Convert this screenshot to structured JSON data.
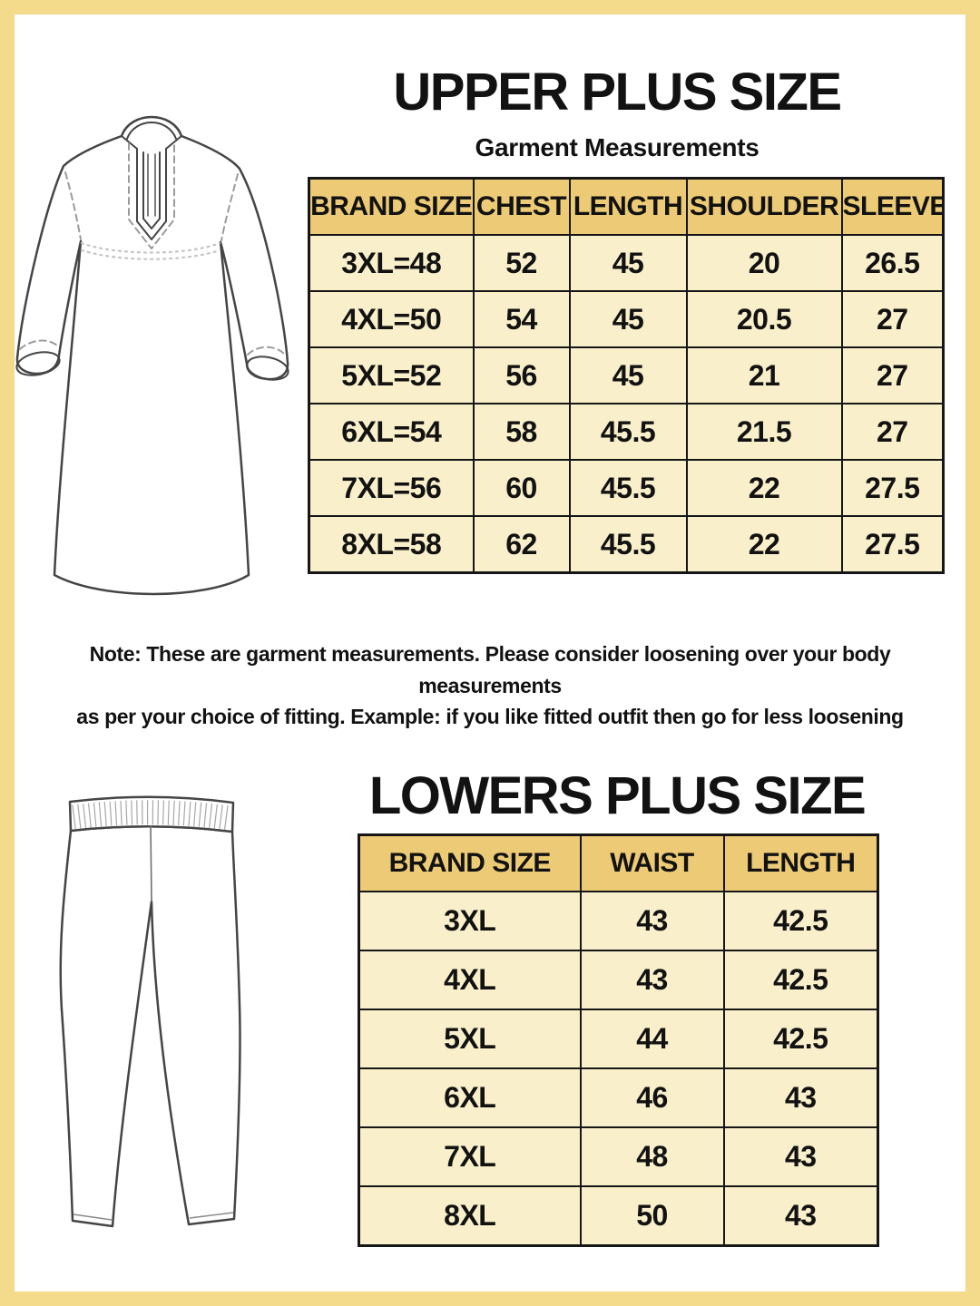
{
  "page": {
    "upper": {
      "title": "UPPER PLUS SIZE",
      "subtitle": "Garment Measurements"
    },
    "note_line1": "Note: These are garment measurements. Please consider loosening over your body measurements",
    "note_line2": "as per your choice of fitting. Example: if you like fitted outfit then go for less loosening",
    "lower": {
      "title": "LOWERS PLUS SIZE"
    }
  },
  "icons": {
    "upper_garment": "kurta-icon",
    "lower_garment": "leggings-icon"
  },
  "colors": {
    "frame": "#F4DA8B",
    "header-cell": "#EDCB76",
    "body-cell": "#F9F0CB",
    "table-border": "#161616",
    "ink": "#121212"
  },
  "chart_data": [
    {
      "type": "table",
      "title": "UPPER PLUS SIZE",
      "subtitle": "Garment Measurements",
      "columns": [
        "BRAND SIZE",
        "CHEST",
        "LENGTH",
        "SHOULDER",
        "SLEEVE"
      ],
      "rows": [
        [
          "3XL=48",
          "52",
          "45",
          "20",
          "26.5"
        ],
        [
          "4XL=50",
          "54",
          "45",
          "20.5",
          "27"
        ],
        [
          "5XL=52",
          "56",
          "45",
          "21",
          "27"
        ],
        [
          "6XL=54",
          "58",
          "45.5",
          "21.5",
          "27"
        ],
        [
          "7XL=56",
          "60",
          "45.5",
          "22",
          "27.5"
        ],
        [
          "8XL=58",
          "62",
          "45.5",
          "22",
          "27.5"
        ]
      ]
    },
    {
      "type": "table",
      "title": "LOWERS PLUS SIZE",
      "columns": [
        "BRAND SIZE",
        "WAIST",
        "LENGTH"
      ],
      "rows": [
        [
          "3XL",
          "43",
          "42.5"
        ],
        [
          "4XL",
          "43",
          "42.5"
        ],
        [
          "5XL",
          "44",
          "42.5"
        ],
        [
          "6XL",
          "46",
          "43"
        ],
        [
          "7XL",
          "48",
          "43"
        ],
        [
          "8XL",
          "50",
          "43"
        ]
      ]
    }
  ]
}
